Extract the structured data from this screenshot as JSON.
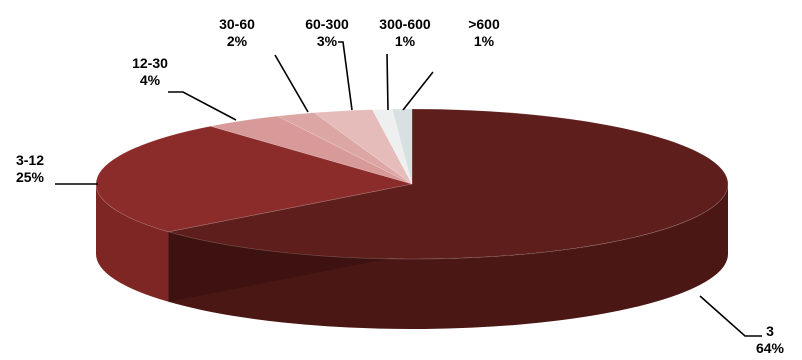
{
  "chart_data": {
    "type": "pie",
    "style": "3d",
    "categories": [
      "3",
      "3-12",
      "12-30",
      "30-60",
      "60-300",
      "300-600",
      ">600"
    ],
    "values": [
      64,
      25,
      4,
      2,
      3,
      1,
      1
    ],
    "value_labels": [
      "64%",
      "25%",
      "4%",
      "2%",
      "3%",
      "1%",
      "1%"
    ],
    "colors": [
      "#5e1f1c",
      "#8b2c2a",
      "#d79a98",
      "#dca6a4",
      "#e6bcbb",
      "#eef0f0",
      "#d9e0e2"
    ],
    "side_colors": [
      "#4a1714",
      "#7e2623",
      "#b97e7c",
      "#c08886",
      "#cb9a98",
      "#cfd4d5",
      "#b9c1c3"
    ],
    "title": "",
    "legend": "none"
  }
}
